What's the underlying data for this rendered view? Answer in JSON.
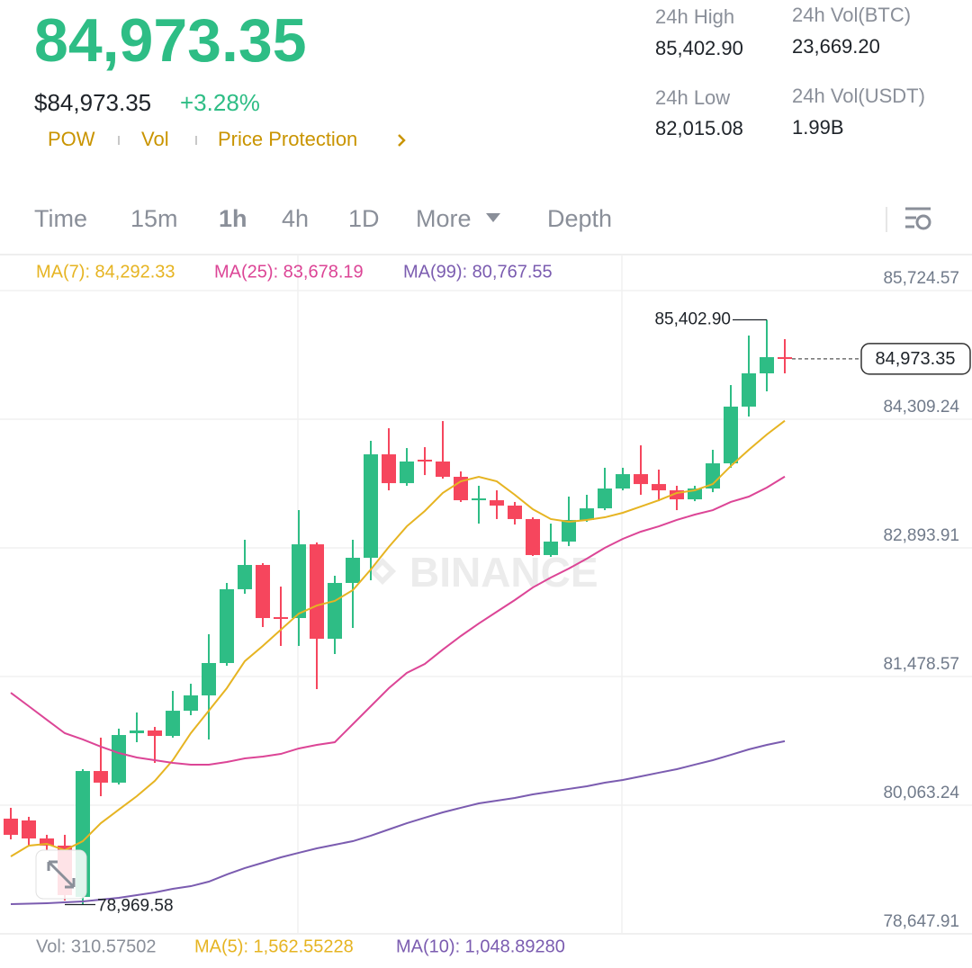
{
  "header": {
    "price": "84,973.35",
    "fiat_price": "$84,973.35",
    "change": "+3.28%",
    "tags": [
      "POW",
      "Vol",
      "Price Protection"
    ],
    "stats": [
      {
        "label": "24h High",
        "value": "85,402.90"
      },
      {
        "label": "24h Vol(BTC)",
        "value": "23,669.20"
      },
      {
        "label": "24h Low",
        "value": "82,015.08"
      },
      {
        "label": "24h Vol(USDT)",
        "value": "1.99B"
      }
    ]
  },
  "tabs": {
    "items": [
      "Time",
      "15m",
      "1h",
      "4h",
      "1D",
      "More",
      "Depth"
    ],
    "active": 2
  },
  "chart_data": {
    "type": "candlestick",
    "watermark": "BINANCE",
    "up_color": "#2ebd85",
    "down_color": "#f6465d",
    "grid": true,
    "ylim": [
      78647.91,
      85724.57
    ],
    "yticks": [
      {
        "value": 85724.57,
        "label": "85,724.57"
      },
      {
        "value": 84309.24,
        "label": "84,309.24"
      },
      {
        "value": 82893.91,
        "label": "82,893.91"
      },
      {
        "value": 81478.57,
        "label": "81,478.57"
      },
      {
        "value": 80063.24,
        "label": "80,063.24"
      },
      {
        "value": 78647.91,
        "label": "78,647.91"
      }
    ],
    "candles": [
      {
        "open": 79915,
        "high": 80034,
        "low": 79687,
        "close": 79737
      },
      {
        "open": 79895,
        "high": 79935,
        "low": 79618,
        "close": 79697
      },
      {
        "open": 79697,
        "high": 79737,
        "low": 79568,
        "close": 79618
      },
      {
        "open": 79618,
        "high": 79737,
        "low": 79014,
        "close": 79074
      },
      {
        "open": 79054,
        "high": 80459,
        "low": 78969.58,
        "close": 80439
      },
      {
        "open": 80439,
        "high": 80806,
        "low": 80162,
        "close": 80311
      },
      {
        "open": 80311,
        "high": 80905,
        "low": 80291,
        "close": 80835
      },
      {
        "open": 80855,
        "high": 81083,
        "low": 80756,
        "close": 80885
      },
      {
        "open": 80885,
        "high": 80924,
        "low": 80528,
        "close": 80825
      },
      {
        "open": 80825,
        "high": 81320,
        "low": 80806,
        "close": 81102
      },
      {
        "open": 81102,
        "high": 81399,
        "low": 81053,
        "close": 81271
      },
      {
        "open": 81271,
        "high": 81944,
        "low": 80786,
        "close": 81627
      },
      {
        "open": 81627,
        "high": 82508,
        "low": 81597,
        "close": 82439
      },
      {
        "open": 82439,
        "high": 82983,
        "low": 82389,
        "close": 82706
      },
      {
        "open": 82706,
        "high": 82726,
        "low": 82023,
        "close": 82122
      },
      {
        "open": 82132,
        "high": 82468,
        "low": 81815,
        "close": 82112
      },
      {
        "open": 82122,
        "high": 83309,
        "low": 81815,
        "close": 82933
      },
      {
        "open": 82933,
        "high": 82953,
        "low": 81340,
        "close": 81894
      },
      {
        "open": 81894,
        "high": 82587,
        "low": 81726,
        "close": 82508
      },
      {
        "open": 82508,
        "high": 82983,
        "low": 82013,
        "close": 82785
      },
      {
        "open": 82785,
        "high": 84072,
        "low": 82538,
        "close": 83923
      },
      {
        "open": 83923,
        "high": 84210,
        "low": 83527,
        "close": 83606
      },
      {
        "open": 83606,
        "high": 83992,
        "low": 83577,
        "close": 83844
      },
      {
        "open": 83864,
        "high": 84002,
        "low": 83695,
        "close": 83844
      },
      {
        "open": 83844,
        "high": 84289,
        "low": 83656,
        "close": 83676
      },
      {
        "open": 83676,
        "high": 83735,
        "low": 83399,
        "close": 83418
      },
      {
        "open": 83418,
        "high": 83577,
        "low": 83161,
        "close": 83438
      },
      {
        "open": 83418,
        "high": 83527,
        "low": 83211,
        "close": 83359
      },
      {
        "open": 83359,
        "high": 83399,
        "low": 83151,
        "close": 83211
      },
      {
        "open": 83211,
        "high": 83230,
        "low": 82805,
        "close": 82815
      },
      {
        "open": 82815,
        "high": 83161,
        "low": 82795,
        "close": 82963
      },
      {
        "open": 82963,
        "high": 83458,
        "low": 82914,
        "close": 83201
      },
      {
        "open": 83201,
        "high": 83478,
        "low": 83181,
        "close": 83329
      },
      {
        "open": 83329,
        "high": 83775,
        "low": 83309,
        "close": 83547
      },
      {
        "open": 83547,
        "high": 83775,
        "low": 83527,
        "close": 83705
      },
      {
        "open": 83705,
        "high": 84022,
        "low": 83478,
        "close": 83596
      },
      {
        "open": 83596,
        "high": 83755,
        "low": 83408,
        "close": 83527
      },
      {
        "open": 83527,
        "high": 83577,
        "low": 83309,
        "close": 83428
      },
      {
        "open": 83428,
        "high": 83577,
        "low": 83408,
        "close": 83547
      },
      {
        "open": 83547,
        "high": 83973,
        "low": 83507,
        "close": 83824
      },
      {
        "open": 83824,
        "high": 84685,
        "low": 83775,
        "close": 84448
      },
      {
        "open": 84448,
        "high": 85230,
        "low": 84339,
        "close": 84814
      },
      {
        "open": 84814,
        "high": 85402.9,
        "low": 84616,
        "close": 84992
      },
      {
        "open": 84992,
        "high": 85190,
        "low": 84814,
        "close": 84973.35
      }
    ],
    "series": [
      {
        "label": "MA(7): 84,292.33",
        "color": "#e6b422",
        "values": [
          79499,
          79618,
          79638,
          79568,
          79667,
          79865,
          80014,
          80162,
          80330,
          80558,
          80855,
          81102,
          81350,
          81647,
          81815,
          81993,
          82171,
          82260,
          82310,
          82429,
          82656,
          82904,
          83131,
          83300,
          83498,
          83626,
          83676,
          83626,
          83478,
          83319,
          83211,
          83181,
          83201,
          83230,
          83280,
          83349,
          83418,
          83498,
          83527,
          83596,
          83794,
          83973,
          84141,
          84292.33
        ]
      },
      {
        "label": "MA(25): 83,678.19",
        "color": "#dc4596",
        "values": [
          81300,
          81152,
          81003,
          80855,
          80786,
          80707,
          80637,
          80588,
          80558,
          80528,
          80509,
          80509,
          80538,
          80578,
          80598,
          80627,
          80687,
          80726,
          80756,
          80954,
          81152,
          81350,
          81518,
          81617,
          81775,
          81924,
          82062,
          82191,
          82320,
          82458,
          82567,
          82666,
          82775,
          82894,
          82993,
          83072,
          83131,
          83201,
          83260,
          83309,
          83399,
          83458,
          83557,
          83678.19
        ]
      },
      {
        "label": "MA(99): 80,767.55",
        "color": "#7b5cb0",
        "values": [
          78975,
          78980,
          78985,
          78994,
          79004,
          79024,
          79044,
          79074,
          79103,
          79143,
          79172,
          79222,
          79301,
          79371,
          79430,
          79489,
          79539,
          79588,
          79628,
          79667,
          79727,
          79796,
          79865,
          79925,
          79984,
          80034,
          80083,
          80113,
          80142,
          80182,
          80212,
          80242,
          80271,
          80311,
          80340,
          80380,
          80420,
          80459,
          80509,
          80558,
          80617,
          80677,
          80726,
          80767.55
        ]
      }
    ],
    "last_price": {
      "value": 84973.35,
      "label": "84,973.35"
    },
    "high_marker": {
      "value": 85402.9,
      "label": "85,402.90"
    },
    "low_marker": {
      "value": 78969.58,
      "label": "78,969.58"
    },
    "volume_legend": [
      {
        "text": "Vol: 310.57502",
        "color": "#8a8f99"
      },
      {
        "text": "MA(5): 1,562.55228",
        "color": "#e6b422"
      },
      {
        "text": "MA(10): 1,048.89280",
        "color": "#7b5cb0"
      }
    ]
  }
}
